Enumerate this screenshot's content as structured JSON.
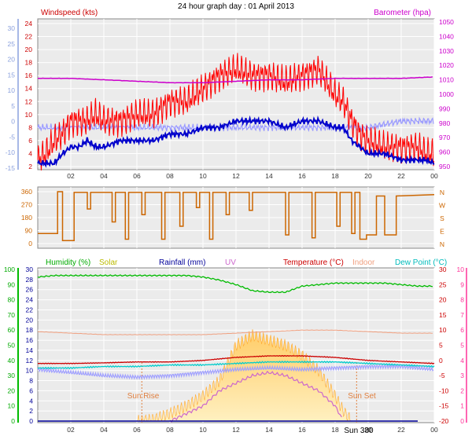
{
  "title": "24 hour graph day : 01 April 2013",
  "colors": {
    "wind": "#ff0000",
    "gust_bg": "#9a9aff",
    "avg": "#0000cc",
    "baro": "#cc00cc",
    "winddir": "#cc6600",
    "humidity": "#00bb00",
    "solar": "#cccc00",
    "rain": "#000099",
    "uv": "#cc66cc",
    "temp": "#cc0000",
    "indoor": "#f0a080",
    "dew": "#00cccc",
    "axis_wind_left": "#8aa0dd",
    "axis_humidity": "#00aa00",
    "axis_uv": "#ff3399",
    "plot_bg": "#ebebeb",
    "grid": "#ffffff",
    "sunrise": "#e08040"
  },
  "hour_labels": [
    "02",
    "04",
    "06",
    "08",
    "10",
    "12",
    "14",
    "16",
    "18",
    "20",
    "22",
    "00"
  ],
  "sun_labels": {
    "rise": "Sun Rise",
    "set": "Sun Set",
    "hours": "Sun 380"
  },
  "chart_data": [
    {
      "type": "line",
      "name": "wind_baro_panel",
      "title": "",
      "left_axis_label": "Windspeed (kts)",
      "right_axis_label": "Barometer (hpa)",
      "xlim": [
        0,
        24
      ],
      "xticks_hours": [
        2,
        4,
        6,
        8,
        10,
        12,
        14,
        16,
        18,
        20,
        22,
        24
      ],
      "y_left_inner": {
        "ticks": [
          2,
          4,
          6,
          8,
          10,
          12,
          14,
          16,
          18,
          20,
          22,
          24
        ],
        "range": [
          2,
          24
        ]
      },
      "y_left_outer": {
        "ticks": [
          30,
          25,
          20,
          15,
          10,
          5,
          0,
          -5,
          -10,
          -15
        ],
        "range": [
          -15,
          30
        ]
      },
      "y_right": {
        "ticks": [
          950,
          960,
          970,
          980,
          990,
          1000,
          1010,
          1020,
          1030,
          1040,
          1050
        ],
        "range": [
          950,
          1050
        ]
      },
      "series": [
        {
          "name": "Gust",
          "x": [
            0,
            0.5,
            1,
            1.5,
            2,
            2.5,
            3,
            3.5,
            4,
            5,
            6,
            7,
            8,
            9,
            10,
            11,
            12,
            13,
            14,
            15,
            16,
            17,
            18,
            18.5,
            19,
            19.5,
            20,
            21,
            22,
            23,
            23.5,
            24
          ],
          "values": [
            3,
            4,
            6,
            7,
            9,
            9,
            9,
            10,
            9,
            9,
            10,
            10,
            12,
            12,
            14,
            16,
            17,
            16,
            16,
            15,
            16,
            17,
            13,
            12,
            9,
            7,
            6,
            5,
            5,
            5,
            4,
            4
          ]
        },
        {
          "name": "Average",
          "x": [
            0,
            1,
            1.5,
            2,
            2.5,
            3,
            3.5,
            4,
            5,
            6,
            7,
            8,
            9,
            10,
            11,
            12,
            13,
            14,
            15,
            16,
            17,
            18,
            18.5,
            19,
            19.5,
            20,
            21,
            22,
            23,
            23.5,
            24
          ],
          "values": [
            2.5,
            2.5,
            4,
            5,
            5,
            6,
            5,
            5,
            6,
            6,
            6,
            7,
            7,
            8,
            8,
            9,
            9,
            9,
            8,
            9,
            9,
            8,
            8,
            6,
            5,
            4,
            4,
            3,
            3,
            3,
            2.5
          ]
        },
        {
          "name": "Barometer",
          "x": [
            0,
            2,
            4,
            6,
            8,
            10,
            12,
            14,
            16,
            18,
            20,
            22,
            24
          ],
          "values": [
            1011,
            1011,
            1010,
            1009,
            1008,
            1008,
            1009,
            1010,
            1010,
            1011,
            1011,
            1011,
            1012
          ]
        },
        {
          "name": "Background",
          "x": [
            0,
            2,
            4,
            6,
            8,
            10,
            12,
            14,
            16,
            18,
            20,
            22,
            24
          ],
          "values": [
            8,
            8,
            8,
            8,
            8,
            8,
            8,
            8,
            8,
            8,
            8,
            9,
            9
          ]
        }
      ]
    },
    {
      "type": "line",
      "name": "wind_direction_panel",
      "title": "",
      "xlim": [
        0,
        24
      ],
      "y_left": {
        "ticks": [
          0,
          90,
          180,
          270,
          360
        ],
        "range": [
          0,
          360
        ]
      },
      "y_right_labels": [
        "N",
        "W",
        "S",
        "E",
        "N"
      ],
      "series": [
        {
          "name": "Direction",
          "segments": [
            [
              0,
              70
            ],
            [
              1.2,
              70
            ],
            [
              1.2,
              360
            ],
            [
              1.5,
              360
            ],
            [
              1.5,
              20
            ],
            [
              2.2,
              20
            ],
            [
              2.2,
              355
            ],
            [
              3.0,
              355
            ],
            [
              3.0,
              240
            ],
            [
              3.2,
              240
            ],
            [
              3.2,
              355
            ],
            [
              4.5,
              355
            ],
            [
              4.5,
              150
            ],
            [
              4.7,
              150
            ],
            [
              4.7,
              355
            ],
            [
              5.3,
              355
            ],
            [
              5.3,
              30
            ],
            [
              5.5,
              30
            ],
            [
              5.5,
              355
            ],
            [
              6.3,
              355
            ],
            [
              6.3,
              200
            ],
            [
              6.5,
              200
            ],
            [
              6.5,
              355
            ],
            [
              7.5,
              355
            ],
            [
              7.5,
              30
            ],
            [
              7.7,
              30
            ],
            [
              7.7,
              355
            ],
            [
              8.6,
              355
            ],
            [
              8.6,
              120
            ],
            [
              8.8,
              120
            ],
            [
              8.8,
              355
            ],
            [
              9.6,
              355
            ],
            [
              9.6,
              250
            ],
            [
              9.8,
              250
            ],
            [
              9.8,
              355
            ],
            [
              10.4,
              355
            ],
            [
              10.4,
              30
            ],
            [
              10.6,
              30
            ],
            [
              10.6,
              355
            ],
            [
              11.4,
              355
            ],
            [
              11.4,
              200
            ],
            [
              11.6,
              200
            ],
            [
              11.6,
              355
            ],
            [
              12.8,
              355
            ],
            [
              12.8,
              230
            ],
            [
              13.0,
              230
            ],
            [
              13.0,
              355
            ],
            [
              15.0,
              355
            ],
            [
              15.0,
              60
            ],
            [
              15.2,
              60
            ],
            [
              15.2,
              355
            ],
            [
              16.6,
              355
            ],
            [
              16.6,
              40
            ],
            [
              16.8,
              40
            ],
            [
              16.8,
              355
            ],
            [
              18.1,
              355
            ],
            [
              18.1,
              120
            ],
            [
              18.3,
              120
            ],
            [
              18.3,
              355
            ],
            [
              19.0,
              355
            ],
            [
              19.0,
              70
            ],
            [
              19.2,
              70
            ],
            [
              19.2,
              355
            ],
            [
              19.5,
              355
            ],
            [
              19.5,
              30
            ],
            [
              19.9,
              30
            ],
            [
              19.9,
              60
            ],
            [
              20.5,
              60
            ],
            [
              20.5,
              330
            ],
            [
              21.0,
              330
            ],
            [
              21.0,
              60
            ],
            [
              21.7,
              60
            ],
            [
              21.7,
              330
            ],
            [
              24,
              340
            ]
          ]
        }
      ]
    },
    {
      "type": "line",
      "name": "temp_hum_rain_panel",
      "title": "",
      "labels": {
        "humidity": "Humidity (%)",
        "solar": "Solar",
        "rain": "Rainfall (mm)",
        "uv": "UV",
        "temp": "Temperature (°C)",
        "indoor": "Indoor",
        "dew": "Dew Point (°C)"
      },
      "xlim": [
        0,
        24
      ],
      "y_hum": {
        "ticks": [
          0,
          10,
          20,
          30,
          40,
          50,
          60,
          70,
          80,
          90,
          100
        ],
        "range": [
          0,
          100
        ]
      },
      "y_rain": {
        "ticks": [
          0,
          2,
          4,
          6,
          8,
          10,
          12,
          14,
          16,
          18,
          20,
          22,
          24,
          26,
          28,
          30
        ],
        "range": [
          0,
          30
        ]
      },
      "y_temp": {
        "ticks": [
          -20,
          -15,
          -10,
          -5,
          0,
          5,
          10,
          15,
          20,
          25,
          30
        ],
        "range": [
          -20,
          30
        ]
      },
      "y_uv": {
        "ticks": [
          0,
          1,
          2,
          3,
          4,
          5,
          6,
          7,
          8,
          9,
          10
        ],
        "range": [
          0,
          10
        ]
      },
      "series": [
        {
          "name": "Humidity",
          "x": [
            0,
            1,
            2,
            3,
            4,
            5,
            6,
            7,
            8,
            9,
            10,
            11,
            12,
            13,
            14,
            15,
            16,
            17,
            18,
            19,
            20,
            21,
            22,
            23,
            24
          ],
          "values": [
            95,
            96,
            96,
            96,
            96,
            96,
            96,
            96,
            96,
            96,
            95,
            93,
            90,
            86,
            85,
            85,
            89,
            90,
            91,
            91,
            91,
            91,
            90,
            89,
            89
          ]
        },
        {
          "name": "Temperature",
          "x": [
            0,
            2,
            4,
            6,
            8,
            10,
            12,
            14,
            16,
            18,
            20,
            22,
            24
          ],
          "values": [
            -1,
            -1,
            -0.8,
            -0.5,
            -0.5,
            0,
            1,
            1.5,
            1.5,
            1,
            0,
            -0.5,
            -1
          ]
        },
        {
          "name": "Dew Point",
          "x": [
            0,
            2,
            4,
            6,
            8,
            10,
            12,
            14,
            16,
            18,
            20,
            22,
            24
          ],
          "values": [
            -2.5,
            -2.5,
            -2,
            -2,
            -1.5,
            -1.5,
            -1,
            -0.5,
            -0.5,
            -0.5,
            -1,
            -1.5,
            -2
          ]
        },
        {
          "name": "Indoor",
          "x": [
            0,
            2,
            4,
            6,
            8,
            10,
            12,
            14,
            16,
            18,
            20,
            22,
            24
          ],
          "values": [
            9.5,
            9,
            8.5,
            8.5,
            8.5,
            8.5,
            9,
            9.5,
            10,
            10,
            9.5,
            9,
            9
          ]
        },
        {
          "name": "Background",
          "x": [
            0,
            2,
            4,
            6,
            8,
            10,
            12,
            14,
            16,
            18,
            20,
            22,
            24
          ],
          "values": [
            -3,
            -4,
            -5,
            -5.5,
            -5,
            -4,
            -3,
            -2.5,
            -3,
            -2.5,
            -2,
            -2,
            -3
          ]
        },
        {
          "name": "Solar",
          "x": [
            6,
            7,
            8,
            9,
            10,
            11,
            12,
            13,
            14,
            15,
            16,
            17,
            18,
            18.5,
            19
          ],
          "values": [
            0,
            0.3,
            1.5,
            3,
            5,
            8,
            15,
            17,
            16,
            15,
            13,
            10,
            5,
            2,
            0
          ]
        },
        {
          "name": "UV",
          "x": [
            8,
            9,
            10,
            11,
            12,
            13,
            14,
            15,
            16,
            17,
            18,
            18.5
          ],
          "values": [
            0,
            0.5,
            1,
            2,
            2.5,
            3,
            3.2,
            3,
            2.5,
            2,
            1,
            0
          ]
        },
        {
          "name": "Rainfall",
          "x": [
            0,
            24
          ],
          "values": [
            0,
            0
          ]
        }
      ]
    }
  ]
}
